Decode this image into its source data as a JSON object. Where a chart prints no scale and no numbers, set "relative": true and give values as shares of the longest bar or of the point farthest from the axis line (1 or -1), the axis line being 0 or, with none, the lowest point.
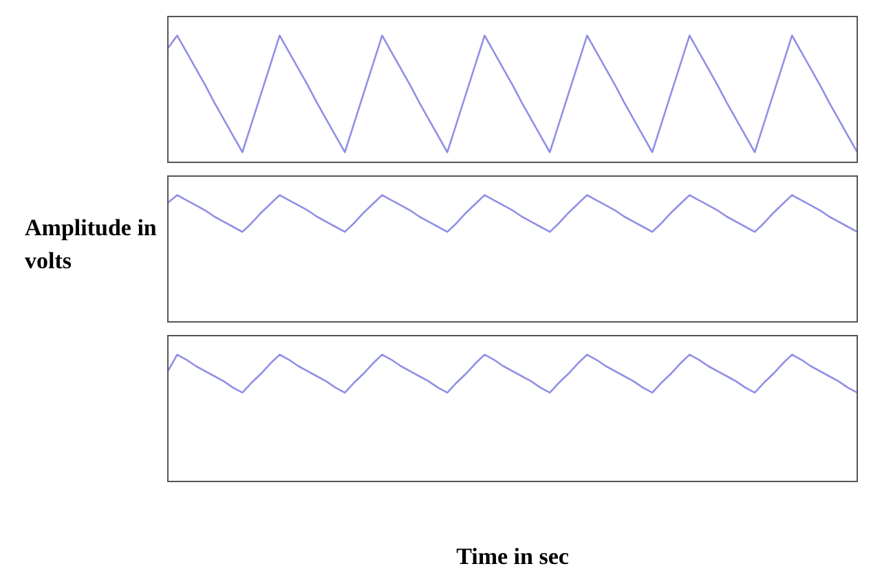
{
  "chart_data": [
    {
      "type": "line",
      "relative": true,
      "marker": "none",
      "categories": [
        null,
        null,
        null,
        null,
        null,
        null,
        null,
        null,
        null,
        null,
        null,
        null,
        null,
        null,
        null,
        null,
        null,
        null,
        null,
        null,
        null,
        null,
        null,
        null,
        null,
        null,
        null,
        null,
        null,
        null,
        null,
        null,
        null,
        null,
        null,
        null,
        null,
        null,
        null,
        null,
        null,
        null,
        null,
        null,
        null,
        null,
        null,
        null,
        null,
        null,
        null,
        null,
        null,
        null,
        null,
        null,
        null,
        null,
        null,
        null,
        null,
        null,
        null,
        null,
        null,
        null,
        null,
        null,
        null,
        null,
        null,
        null,
        null,
        null,
        null
      ],
      "series": [
        {
          "color": "#8f8fe6",
          "values": [
            0.9,
            1,
            0.87,
            0.74,
            0.61,
            0.47,
            0.34,
            0.21,
            0.08,
            0.31,
            0.54,
            0.77,
            1,
            0.87,
            0.74,
            0.61,
            0.47,
            0.34,
            0.21,
            0.08,
            0.31,
            0.54,
            0.77,
            1,
            0.87,
            0.74,
            0.61,
            0.47,
            0.34,
            0.21,
            0.08,
            0.31,
            0.54,
            0.77,
            1,
            0.87,
            0.74,
            0.61,
            0.47,
            0.34,
            0.21,
            0.08,
            0.31,
            0.54,
            0.77,
            1,
            0.87,
            0.74,
            0.61,
            0.47,
            0.34,
            0.21,
            0.08,
            0.31,
            0.54,
            0.77,
            1,
            0.87,
            0.74,
            0.61,
            0.47,
            0.34,
            0.21,
            0.08,
            0.31,
            0.54,
            0.77,
            1,
            0.87,
            0.74,
            0.61,
            0.47,
            0.34,
            0.21,
            0.08
          ]
        }
      ]
    },
    {
      "type": "line",
      "relative": true,
      "marker": "none",
      "ylabel": "Amplitude in volts",
      "categories": [
        null,
        null,
        null,
        null,
        null,
        null,
        null,
        null,
        null,
        null,
        null,
        null,
        null,
        null,
        null,
        null,
        null,
        null,
        null,
        null,
        null,
        null,
        null,
        null,
        null,
        null,
        null,
        null,
        null,
        null,
        null,
        null,
        null,
        null,
        null,
        null,
        null,
        null,
        null,
        null,
        null,
        null,
        null,
        null,
        null,
        null,
        null,
        null,
        null,
        null,
        null,
        null,
        null,
        null,
        null,
        null,
        null,
        null,
        null,
        null,
        null,
        null,
        null,
        null,
        null,
        null,
        null,
        null,
        null,
        null,
        null,
        null,
        null,
        null,
        null
      ],
      "series": [
        {
          "color": "#8f8fe6",
          "values": [
            0.94,
            1,
            0.96,
            0.92,
            0.88,
            0.83,
            0.79,
            0.75,
            0.71,
            0.78,
            0.86,
            0.93,
            1,
            0.96,
            0.92,
            0.88,
            0.83,
            0.79,
            0.75,
            0.71,
            0.78,
            0.86,
            0.93,
            1,
            0.96,
            0.92,
            0.88,
            0.83,
            0.79,
            0.75,
            0.71,
            0.78,
            0.86,
            0.93,
            1,
            0.96,
            0.92,
            0.88,
            0.83,
            0.79,
            0.75,
            0.71,
            0.78,
            0.86,
            0.93,
            1,
            0.96,
            0.92,
            0.88,
            0.83,
            0.79,
            0.75,
            0.71,
            0.78,
            0.86,
            0.93,
            1,
            0.96,
            0.92,
            0.88,
            0.83,
            0.79,
            0.75,
            0.71,
            0.78,
            0.86,
            0.93,
            1,
            0.96,
            0.92,
            0.88,
            0.83,
            0.79,
            0.75,
            0.71
          ]
        }
      ]
    },
    {
      "type": "line",
      "relative": true,
      "marker": "none",
      "xlabel": "Time in sec",
      "categories": [
        null,
        null,
        null,
        null,
        null,
        null,
        null,
        null,
        null,
        null,
        null,
        null,
        null,
        null,
        null,
        null,
        null,
        null,
        null,
        null,
        null,
        null,
        null,
        null,
        null,
        null,
        null,
        null,
        null,
        null,
        null,
        null,
        null,
        null,
        null,
        null,
        null,
        null,
        null,
        null,
        null,
        null,
        null,
        null,
        null,
        null,
        null,
        null,
        null,
        null,
        null,
        null,
        null,
        null,
        null,
        null,
        null,
        null,
        null,
        null,
        null,
        null,
        null,
        null,
        null,
        null,
        null,
        null,
        null,
        null,
        null,
        null,
        null,
        null,
        null
      ],
      "series": [
        {
          "color": "#8f8fe6",
          "values": [
            0.87,
            1,
            0.96,
            0.91,
            0.87,
            0.83,
            0.79,
            0.74,
            0.7,
            0.78,
            0.85,
            0.93,
            1,
            0.96,
            0.91,
            0.87,
            0.83,
            0.79,
            0.74,
            0.7,
            0.78,
            0.85,
            0.93,
            1,
            0.96,
            0.91,
            0.87,
            0.83,
            0.79,
            0.74,
            0.7,
            0.78,
            0.85,
            0.93,
            1,
            0.96,
            0.91,
            0.87,
            0.83,
            0.79,
            0.74,
            0.7,
            0.78,
            0.85,
            0.93,
            1,
            0.96,
            0.91,
            0.87,
            0.83,
            0.79,
            0.74,
            0.7,
            0.78,
            0.85,
            0.93,
            1,
            0.96,
            0.91,
            0.87,
            0.83,
            0.79,
            0.74,
            0.7,
            0.78,
            0.85,
            0.93,
            1,
            0.96,
            0.91,
            0.87,
            0.83,
            0.79,
            0.74,
            0.7
          ]
        }
      ]
    }
  ]
}
